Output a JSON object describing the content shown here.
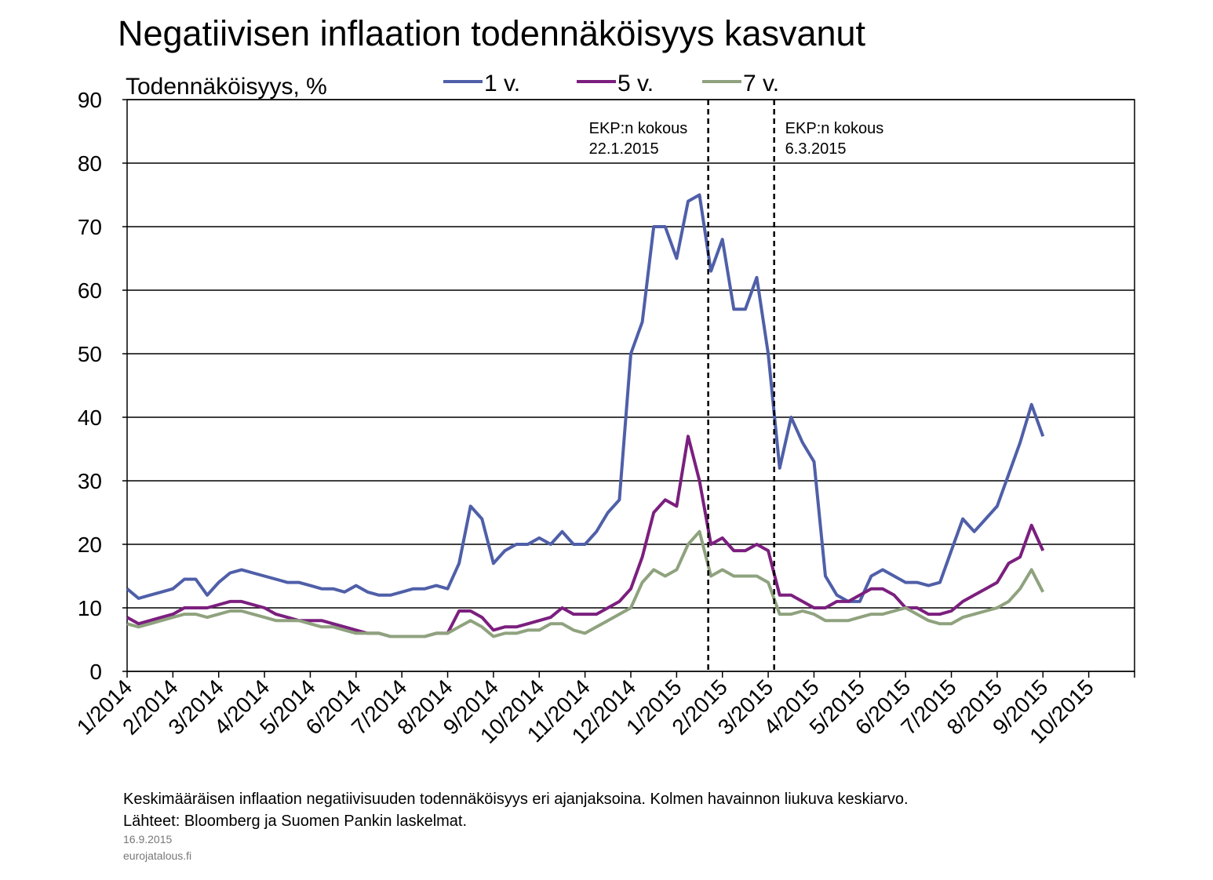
{
  "chart_data": {
    "type": "line",
    "title": "Negatiivisen inflaation todennäköisyys kasvanut",
    "y_label": "Todennäköisyys, %",
    "x": [
      0,
      0.25,
      0.5,
      0.75,
      1,
      1.25,
      1.5,
      1.75,
      2,
      2.25,
      2.5,
      2.75,
      3,
      3.25,
      3.5,
      3.75,
      4,
      4.25,
      4.5,
      4.75,
      5,
      5.25,
      5.5,
      5.75,
      6,
      6.25,
      6.5,
      6.75,
      7,
      7.25,
      7.5,
      7.75,
      8,
      8.25,
      8.5,
      8.75,
      9,
      9.25,
      9.5,
      9.75,
      10,
      10.25,
      10.5,
      10.75,
      11,
      11.25,
      11.5,
      11.75,
      12,
      12.25,
      12.5,
      12.75,
      13,
      13.25,
      13.5,
      13.75,
      14,
      14.25,
      14.5,
      14.75,
      15,
      15.25,
      15.5,
      15.75,
      16,
      16.25,
      16.5,
      16.75,
      17,
      17.25,
      17.5,
      17.75,
      18,
      18.25,
      18.5,
      18.75,
      19,
      19.25,
      19.5,
      19.75,
      20
    ],
    "series": [
      {
        "name": "1 v.",
        "color": "#4f5fa8",
        "values": [
          13,
          11.5,
          12,
          12.5,
          13,
          14.5,
          14.5,
          12,
          14,
          15.5,
          16,
          15.5,
          15,
          14.5,
          14,
          14,
          13.5,
          13,
          13,
          12.5,
          13.5,
          12.5,
          12,
          12,
          12.5,
          13,
          13,
          13.5,
          13,
          17,
          26,
          24,
          17,
          19,
          20,
          20,
          21,
          20,
          22,
          20,
          20,
          22,
          25,
          27,
          50,
          55,
          70,
          70,
          65,
          74,
          75,
          63,
          68,
          57,
          57,
          62,
          50,
          32,
          40,
          36,
          33,
          15,
          12,
          11,
          11,
          15,
          16,
          15,
          14,
          14,
          13.5,
          14,
          19,
          24,
          22,
          24,
          26,
          31,
          36,
          42,
          37
        ]
      },
      {
        "name": "5 v.",
        "color": "#7b1f7e",
        "values": [
          8.5,
          7.5,
          8,
          8.5,
          9,
          10,
          10,
          10,
          10.5,
          11,
          11,
          10.5,
          10,
          9,
          8.5,
          8,
          8,
          8,
          7.5,
          7,
          6.5,
          6,
          6,
          5.5,
          5.5,
          5.5,
          5.5,
          6,
          6,
          9.5,
          9.5,
          8.5,
          6.5,
          7,
          7,
          7.5,
          8,
          8.5,
          10,
          9,
          9,
          9,
          10,
          11,
          13,
          18,
          25,
          27,
          26,
          37,
          30,
          20,
          21,
          19,
          19,
          20,
          19,
          12,
          12,
          11,
          10,
          10,
          11,
          11,
          12,
          13,
          13,
          12,
          10,
          10,
          9,
          9,
          9.5,
          11,
          12,
          13,
          14,
          17,
          18,
          23,
          19
        ]
      },
      {
        "name": "7 v.",
        "color": "#8fa27e",
        "values": [
          7.5,
          7,
          7.5,
          8,
          8.5,
          9,
          9,
          8.5,
          9,
          9.5,
          9.5,
          9,
          8.5,
          8,
          8,
          8,
          7.5,
          7,
          7,
          6.5,
          6,
          6,
          6,
          5.5,
          5.5,
          5.5,
          5.5,
          6,
          6,
          7,
          8,
          7,
          5.5,
          6,
          6,
          6.5,
          6.5,
          7.5,
          7.5,
          6.5,
          6,
          7,
          8,
          9,
          10,
          14,
          16,
          15,
          16,
          20,
          22,
          15,
          16,
          15,
          15,
          15,
          14,
          9,
          9,
          9.5,
          9,
          8,
          8,
          8,
          8.5,
          9,
          9,
          9.5,
          10,
          9,
          8,
          7.5,
          7.5,
          8.5,
          9,
          9.5,
          10,
          11,
          13,
          16,
          12.5
        ]
      }
    ],
    "xlim": [
      0,
      22
    ],
    "xticks": [
      {
        "value": 0,
        "label": "1/2014"
      },
      {
        "value": 1,
        "label": "2/2014"
      },
      {
        "value": 2,
        "label": "3/2014"
      },
      {
        "value": 3,
        "label": "4/2014"
      },
      {
        "value": 4,
        "label": "5/2014"
      },
      {
        "value": 5,
        "label": "6/2014"
      },
      {
        "value": 6,
        "label": "7/2014"
      },
      {
        "value": 7,
        "label": "8/2014"
      },
      {
        "value": 8,
        "label": "9/2014"
      },
      {
        "value": 9,
        "label": "10/2014"
      },
      {
        "value": 10,
        "label": "11/2014"
      },
      {
        "value": 11,
        "label": "12/2014"
      },
      {
        "value": 12,
        "label": "1/2015"
      },
      {
        "value": 13,
        "label": "2/2015"
      },
      {
        "value": 14,
        "label": "3/2015"
      },
      {
        "value": 15,
        "label": "4/2015"
      },
      {
        "value": 16,
        "label": "5/2015"
      },
      {
        "value": 17,
        "label": "6/2015"
      },
      {
        "value": 18,
        "label": "7/2015"
      },
      {
        "value": 19,
        "label": "8/2015"
      },
      {
        "value": 20,
        "label": "9/2015"
      },
      {
        "value": 21,
        "label": "10/2015"
      }
    ],
    "ylim": [
      0,
      90
    ],
    "yticks": [
      0,
      10,
      20,
      30,
      40,
      50,
      60,
      70,
      80,
      90
    ],
    "grid": true,
    "annotations": [
      {
        "x": 12.69,
        "text": [
          "EKP:n kokous",
          "22.1.2015"
        ]
      },
      {
        "x": 14.13,
        "text": [
          "EKP:n kokous",
          "6.3.2015"
        ]
      }
    ],
    "notes": [
      "Keskimääräisen inflaation negatiivisuuden todennäköisyys eri ajanjaksoina. Kolmen havainnon liukuva keskiarvo.",
      "Lähteet: Bloomberg ja Suomen Pankin laskelmat."
    ],
    "date": "16.9.2015",
    "source": "eurojatalous.fi"
  }
}
